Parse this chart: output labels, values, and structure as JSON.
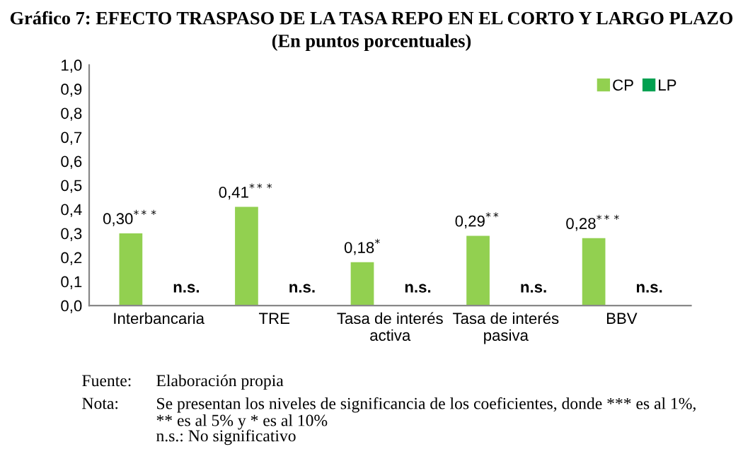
{
  "chart_data": {
    "type": "bar",
    "title": "Gráfico 7: EFECTO TRASPASO DE LA TASA REPO EN EL CORTO Y LARGO PLAZO",
    "subtitle": "(En puntos porcentuales)",
    "categories": [
      "Interbancaria",
      "TRE",
      "Tasa de interés\nactiva",
      "Tasa de interés\npasiva",
      "BBV"
    ],
    "series": [
      {
        "name": "CP",
        "color": "#92d050",
        "values": [
          0.3,
          0.41,
          0.18,
          0.29,
          0.28
        ],
        "value_labels": [
          "0,30$^{***}$",
          "0,41$^{***}$",
          "0,18$^{*}$",
          "0,29$^{**}$",
          "0,28$^{***}$"
        ]
      },
      {
        "name": "LP",
        "color": "#00a050",
        "values": [
          null,
          null,
          null,
          null,
          null
        ],
        "value_labels": [
          "n.s.",
          "n.s.",
          "n.s.",
          "n.s.",
          "n.s."
        ]
      }
    ],
    "ylim": [
      0,
      1
    ],
    "yticks": [
      {
        "value": 0,
        "label": "0,0"
      },
      {
        "value": 0.1,
        "label": "0,1"
      },
      {
        "value": 0.2,
        "label": "0,2"
      },
      {
        "value": 0.3,
        "label": "0,3"
      },
      {
        "value": 0.4,
        "label": "0,4"
      },
      {
        "value": 0.5,
        "label": "0,5"
      },
      {
        "value": 0.6,
        "label": "0,6"
      },
      {
        "value": 0.7,
        "label": "0,7"
      },
      {
        "value": 0.8,
        "label": "0,8"
      },
      {
        "value": 0.9,
        "label": "0,9"
      },
      {
        "value": 1,
        "label": "1,0"
      }
    ],
    "grid": false,
    "legend": "top right",
    "annotations": [
      "Fuente:",
      "Elaboración propia",
      "Nota:",
      "Se presentan los niveles de significancia de los coeficientes, donde *** es al 1%,\n** es al 5% y * es al 10%",
      "n.s.: No significativo"
    ]
  }
}
